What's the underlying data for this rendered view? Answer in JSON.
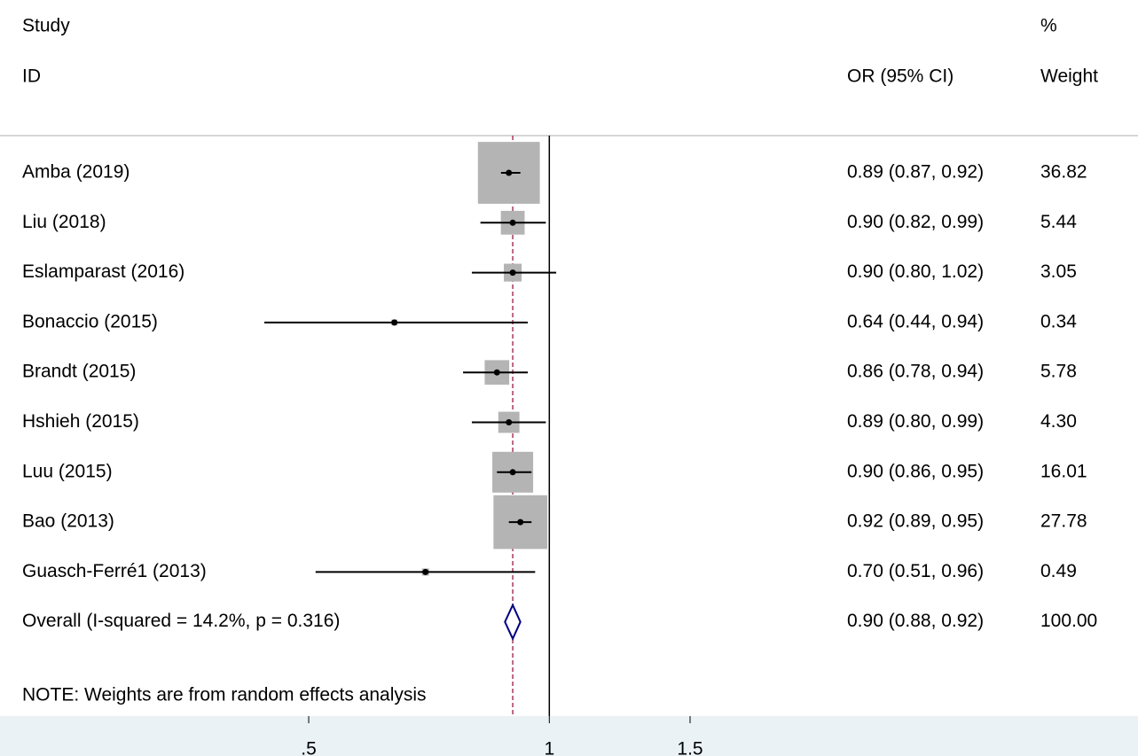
{
  "chart_data": {
    "type": "forest",
    "headers": {
      "study": "Study",
      "id": "ID",
      "or": "OR (95% CI)",
      "pct": "%",
      "weight": "Weight"
    },
    "categories": [
      "Amba (2019)",
      "Liu (2018)",
      "Eslamparast (2016)",
      "Bonaccio (2015)",
      "Brandt (2015)",
      "Hshieh (2015)",
      "Luu (2015)",
      "Bao (2013)",
      "Guasch-Ferré1 (2013)"
    ],
    "values": [
      0.89,
      0.9,
      0.9,
      0.64,
      0.86,
      0.89,
      0.9,
      0.92,
      0.7
    ],
    "lower": [
      0.87,
      0.82,
      0.8,
      0.44,
      0.78,
      0.8,
      0.86,
      0.89,
      0.51
    ],
    "upper": [
      0.92,
      0.99,
      1.02,
      0.94,
      0.94,
      0.99,
      0.95,
      0.95,
      0.96
    ],
    "value_labels": [
      "0.89 (0.87, 0.92)",
      "0.90 (0.82, 0.99)",
      "0.90 (0.80, 1.02)",
      "0.64 (0.44, 0.94)",
      "0.86 (0.78, 0.94)",
      "0.89 (0.80, 0.99)",
      "0.90 (0.86, 0.95)",
      "0.92 (0.89, 0.95)",
      "0.70 (0.51, 0.96)"
    ],
    "weights": [
      36.82,
      5.44,
      3.05,
      0.34,
      5.78,
      4.3,
      16.01,
      27.78,
      0.49
    ],
    "weight_labels": [
      "36.82",
      "5.44",
      "3.05",
      "0.34",
      "5.78",
      "4.30",
      "16.01",
      "27.78",
      "0.49"
    ],
    "overall": {
      "label": "Overall  (I-squared = 14.2%, p = 0.316)",
      "value": 0.9,
      "lower": 0.88,
      "upper": 0.92,
      "value_label": "0.90 (0.88, 0.92)",
      "weight": 100,
      "weight_label": "100.00"
    },
    "note": "NOTE: Weights are from random effects analysis",
    "xscale": "log",
    "xlim": [
      0.44,
      1.5
    ],
    "xticks": [
      {
        "value": 0.5,
        "label": ".5"
      },
      1,
      {
        "value": 1.5,
        "label": "1.5"
      }
    ],
    "null_line": 1,
    "box_color": "#b4b4b4",
    "diamond_color": "#000080",
    "overall_line_color": "#a8385a"
  }
}
